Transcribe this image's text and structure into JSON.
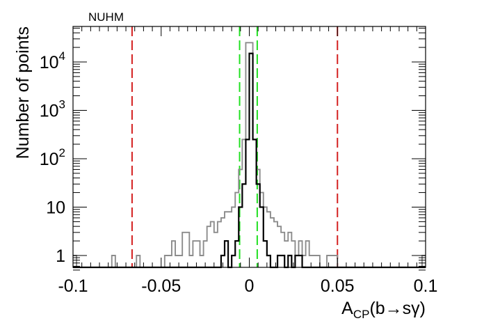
{
  "chart_data": {
    "type": "histogram",
    "title": "NUHM",
    "xlabel": {
      "main": "A",
      "sub": "CP",
      "tail": "(b→sγ)"
    },
    "ylabel": "Number of points",
    "xlim": [
      -0.1,
      0.1
    ],
    "ylim": [
      0.5,
      50000
    ],
    "yscale": "log",
    "x_ticks": [
      {
        "value": -0.1,
        "label": "-0.1"
      },
      {
        "value": -0.05,
        "label": "-0.05"
      },
      {
        "value": 0,
        "label": "0"
      },
      {
        "value": 0.05,
        "label": "0.05"
      },
      {
        "value": 0.1,
        "label": "0.1"
      }
    ],
    "y_ticks": [
      {
        "value": 1,
        "label": "1"
      },
      {
        "value": 10,
        "label": "10"
      },
      {
        "value": 100,
        "label": "10",
        "exp": "2"
      },
      {
        "value": 1000,
        "label": "10",
        "exp": "3"
      },
      {
        "value": 10000,
        "label": "10",
        "exp": "4"
      }
    ],
    "bin_width": 0.002,
    "series": [
      {
        "color": "#8c8c8c",
        "bins": [
          [
            -0.1,
            1
          ],
          [
            -0.078,
            1
          ],
          [
            -0.064,
            1
          ],
          [
            -0.048,
            1
          ],
          [
            -0.046,
            1
          ],
          [
            -0.044,
            2
          ],
          [
            -0.042,
            1
          ],
          [
            -0.04,
            1
          ],
          [
            -0.038,
            3
          ],
          [
            -0.036,
            3
          ],
          [
            -0.034,
            1
          ],
          [
            -0.032,
            2
          ],
          [
            -0.03,
            2
          ],
          [
            -0.028,
            1
          ],
          [
            -0.026,
            2
          ],
          [
            -0.024,
            4
          ],
          [
            -0.022,
            5
          ],
          [
            -0.02,
            3
          ],
          [
            -0.018,
            5
          ],
          [
            -0.016,
            6
          ],
          [
            -0.014,
            8
          ],
          [
            -0.012,
            8
          ],
          [
            -0.01,
            10
          ],
          [
            -0.008,
            20
          ],
          [
            -0.006,
            60
          ],
          [
            -0.004,
            250
          ],
          [
            -0.002,
            25000
          ],
          [
            0,
            25000
          ],
          [
            0.002,
            250
          ],
          [
            0.004,
            60
          ],
          [
            0.006,
            20
          ],
          [
            0.008,
            10
          ],
          [
            0.01,
            8
          ],
          [
            0.012,
            6
          ],
          [
            0.014,
            5
          ],
          [
            0.016,
            4
          ],
          [
            0.018,
            3
          ],
          [
            0.02,
            2
          ],
          [
            0.022,
            3
          ],
          [
            0.024,
            2
          ],
          [
            0.026,
            1
          ],
          [
            0.028,
            2
          ],
          [
            0.03,
            1
          ],
          [
            0.032,
            2
          ],
          [
            0.034,
            1
          ],
          [
            0.036,
            1
          ],
          [
            0.038,
            1
          ],
          [
            0.044,
            1
          ],
          [
            0.046,
            1
          ],
          [
            0.048,
            1
          ],
          [
            0.098,
            1
          ]
        ]
      },
      {
        "color": "#000000",
        "bins": [
          [
            -0.016,
            1
          ],
          [
            -0.014,
            2
          ],
          [
            -0.01,
            1
          ],
          [
            -0.008,
            2
          ],
          [
            -0.006,
            10
          ],
          [
            -0.004,
            30
          ],
          [
            -0.002,
            250
          ],
          [
            0,
            15000
          ],
          [
            0.002,
            250
          ],
          [
            0.004,
            30
          ],
          [
            0.006,
            10
          ],
          [
            0.008,
            2
          ],
          [
            0.01,
            1
          ],
          [
            0.016,
            1
          ],
          [
            0.018,
            1
          ],
          [
            0.022,
            1
          ],
          [
            0.026,
            1
          ],
          [
            0.028,
            1
          ]
        ]
      }
    ],
    "vlines": [
      {
        "x": -0.0665,
        "color": "#d42020"
      },
      {
        "x": 0.05,
        "color": "#d42020"
      },
      {
        "x": -0.0055,
        "color": "#22e022"
      },
      {
        "x": 0.0045,
        "color": "#22e022"
      }
    ]
  }
}
